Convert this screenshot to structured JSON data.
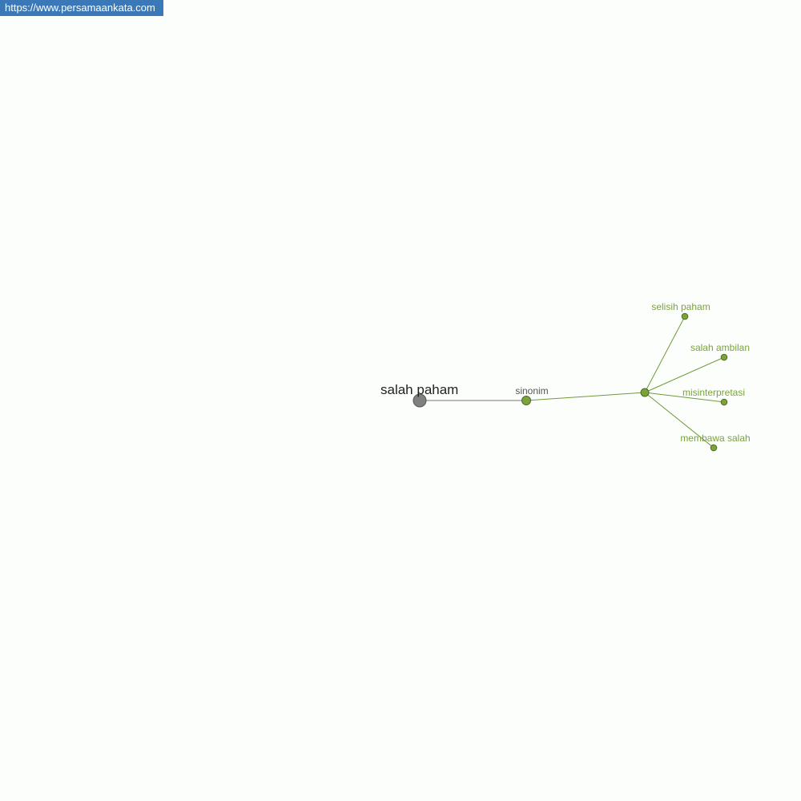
{
  "watermark": "https://www.persamaankata.com",
  "graph": {
    "root": "salah paham",
    "relation": "sinonim",
    "synonyms": [
      "selisih paham",
      "salah ambilan",
      "misinterpretasi",
      "membawa salah"
    ]
  },
  "colors": {
    "root_node": "#808080",
    "relation_node": "#6f9a3a",
    "synonym_text": "#7aa33a",
    "watermark_bg": "#3b78b8"
  }
}
